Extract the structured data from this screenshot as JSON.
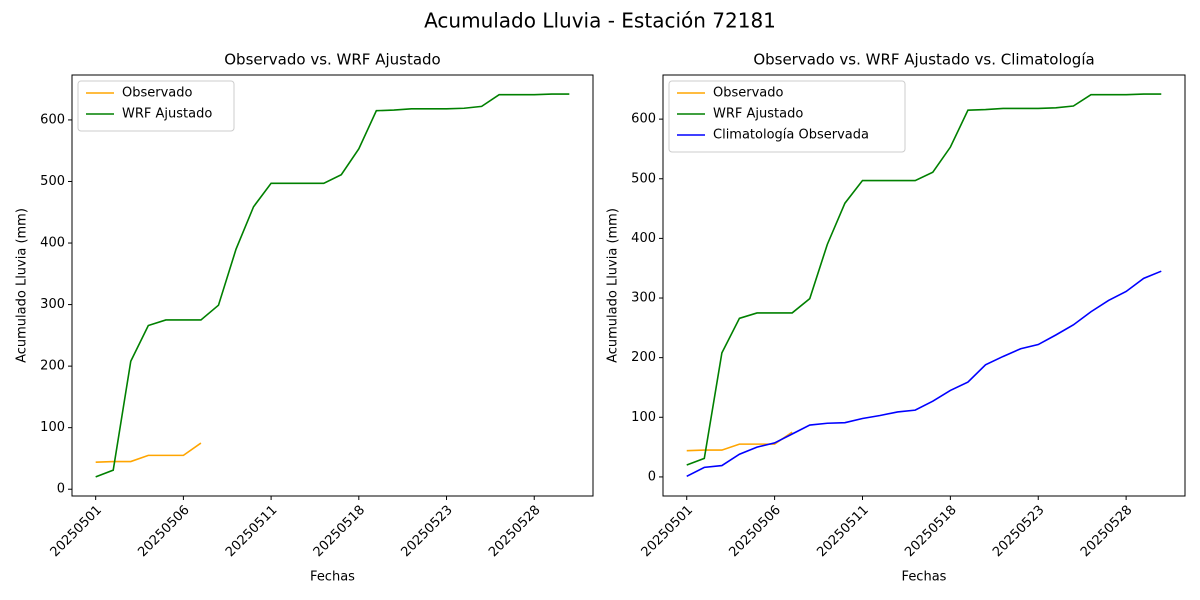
{
  "title": "Acumulado Lluvia - Estación 72181",
  "chart_data": [
    {
      "type": "line",
      "title": "Observado vs. WRF Ajustado",
      "x_label": "Fechas",
      "y_label": "Acumulado Lluvia (mm)",
      "categories": [
        "20250501",
        null,
        null,
        null,
        null,
        "20250506",
        null,
        null,
        null,
        null,
        "20250511",
        null,
        null,
        null,
        null,
        "20250518",
        null,
        null,
        null,
        null,
        "20250523",
        null,
        null,
        null,
        null,
        "20250528",
        null,
        null
      ],
      "series": [
        {
          "name": "Observado",
          "color": "orange",
          "values": [
            44,
            45,
            45,
            55,
            55,
            55,
            75,
            null,
            null,
            null,
            null,
            null,
            null,
            null,
            null,
            null,
            null,
            null,
            null,
            null,
            null,
            null,
            null,
            null,
            null,
            null,
            null,
            null
          ]
        },
        {
          "name": "WRF Ajustado",
          "color": "green",
          "values": [
            20,
            31,
            208,
            266,
            275,
            275,
            275,
            299,
            390,
            459,
            497,
            497,
            497,
            497,
            511,
            553,
            615,
            616,
            618,
            618,
            618,
            619,
            622,
            641,
            641,
            641,
            642,
            642
          ]
        }
      ],
      "ylim": [
        -11,
        673
      ],
      "yticks": [
        0,
        100,
        200,
        300,
        400,
        500,
        600
      ],
      "legend": "upper left"
    },
    {
      "type": "line",
      "title": "Observado vs. WRF Ajustado vs. Climatología",
      "x_label": "Fechas",
      "y_label": "Acumulado Lluvia (mm)",
      "categories": [
        "20250501",
        null,
        null,
        null,
        null,
        "20250506",
        null,
        null,
        null,
        null,
        "20250511",
        null,
        null,
        null,
        null,
        "20250518",
        null,
        null,
        null,
        null,
        "20250523",
        null,
        null,
        null,
        null,
        "20250528",
        null,
        null
      ],
      "series": [
        {
          "name": "Observado",
          "color": "orange",
          "values": [
            44,
            45,
            45,
            55,
            55,
            55,
            75,
            null,
            null,
            null,
            null,
            null,
            null,
            null,
            null,
            null,
            null,
            null,
            null,
            null,
            null,
            null,
            null,
            null,
            null,
            null,
            null,
            null
          ]
        },
        {
          "name": "WRF Ajustado",
          "color": "green",
          "values": [
            20,
            31,
            208,
            266,
            275,
            275,
            275,
            299,
            390,
            459,
            497,
            497,
            497,
            497,
            511,
            553,
            615,
            616,
            618,
            618,
            618,
            619,
            622,
            641,
            641,
            641,
            642,
            642
          ]
        },
        {
          "name": "Climatología Observada",
          "color": "blue",
          "values": [
            1,
            16,
            19,
            38,
            50,
            57,
            72,
            87,
            90,
            91,
            98,
            103,
            109,
            112,
            127,
            145,
            159,
            188,
            202,
            215,
            222,
            238,
            255,
            277,
            296,
            311,
            333,
            345
          ]
        }
      ],
      "ylim": [
        -32,
        674
      ],
      "yticks": [
        0,
        100,
        200,
        300,
        400,
        500,
        600
      ],
      "legend": "upper left"
    }
  ]
}
